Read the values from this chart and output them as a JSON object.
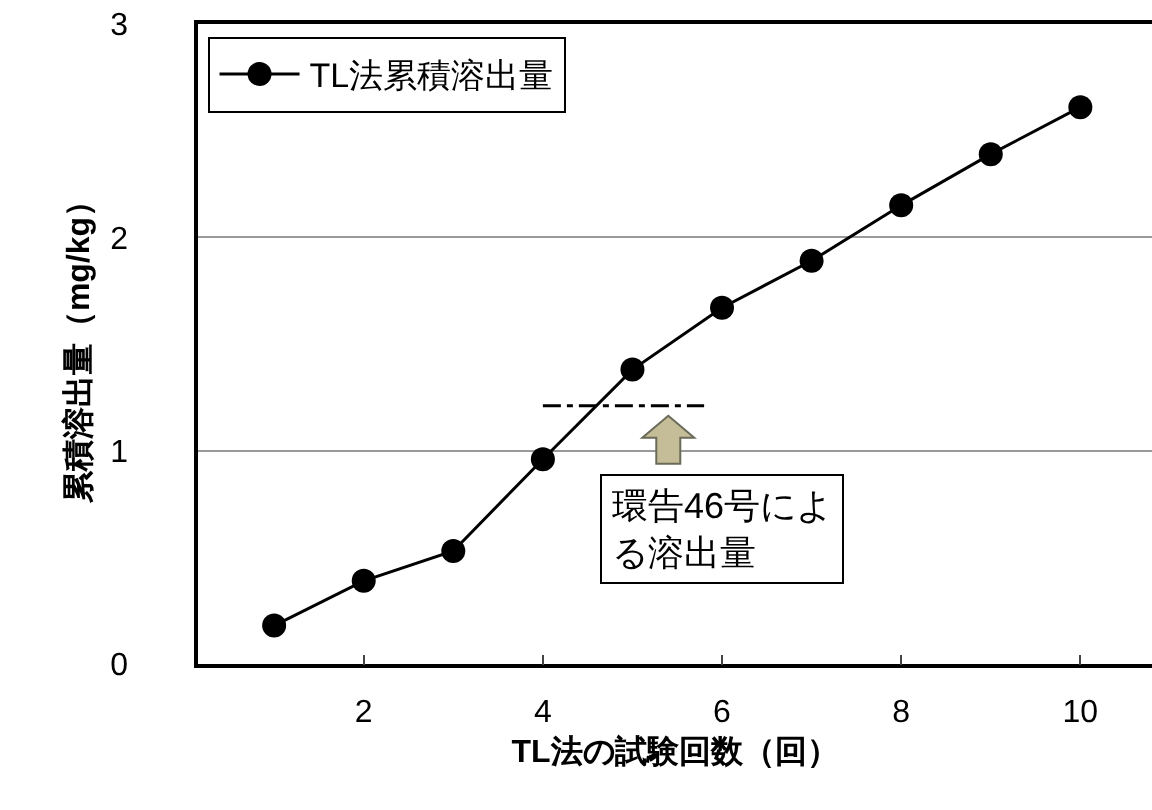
{
  "chart_data": {
    "type": "line",
    "xlabel": "TL法の試験回数（回）",
    "ylabel": "累積溶出量（mg/kg）",
    "x": [
      1,
      2,
      3,
      4,
      5,
      6,
      7,
      8,
      9,
      10
    ],
    "series": [
      {
        "name": "TL法累積溶出量",
        "color": "#000000",
        "values": [
          0.18,
          0.39,
          0.53,
          0.96,
          1.38,
          1.67,
          1.89,
          2.15,
          2.39,
          2.61
        ],
        "marker": "circle"
      },
      {
        "x": [
          4,
          5.8
        ],
        "color": "#000000",
        "values": [
          1.21,
          1.21
        ],
        "line_style": "dashdot",
        "marker": "none"
      }
    ],
    "annotations": [
      {
        "text": "環告46号による溶出量",
        "x": 5.4,
        "y": 1.21
      }
    ],
    "xlim": [
      0.15,
      10.8
    ],
    "xticks": [
      2,
      4,
      6,
      8,
      10
    ],
    "ylim": [
      0,
      3
    ],
    "yticks": [
      0,
      1,
      2,
      3
    ],
    "grid": "y",
    "legend": "top left"
  }
}
